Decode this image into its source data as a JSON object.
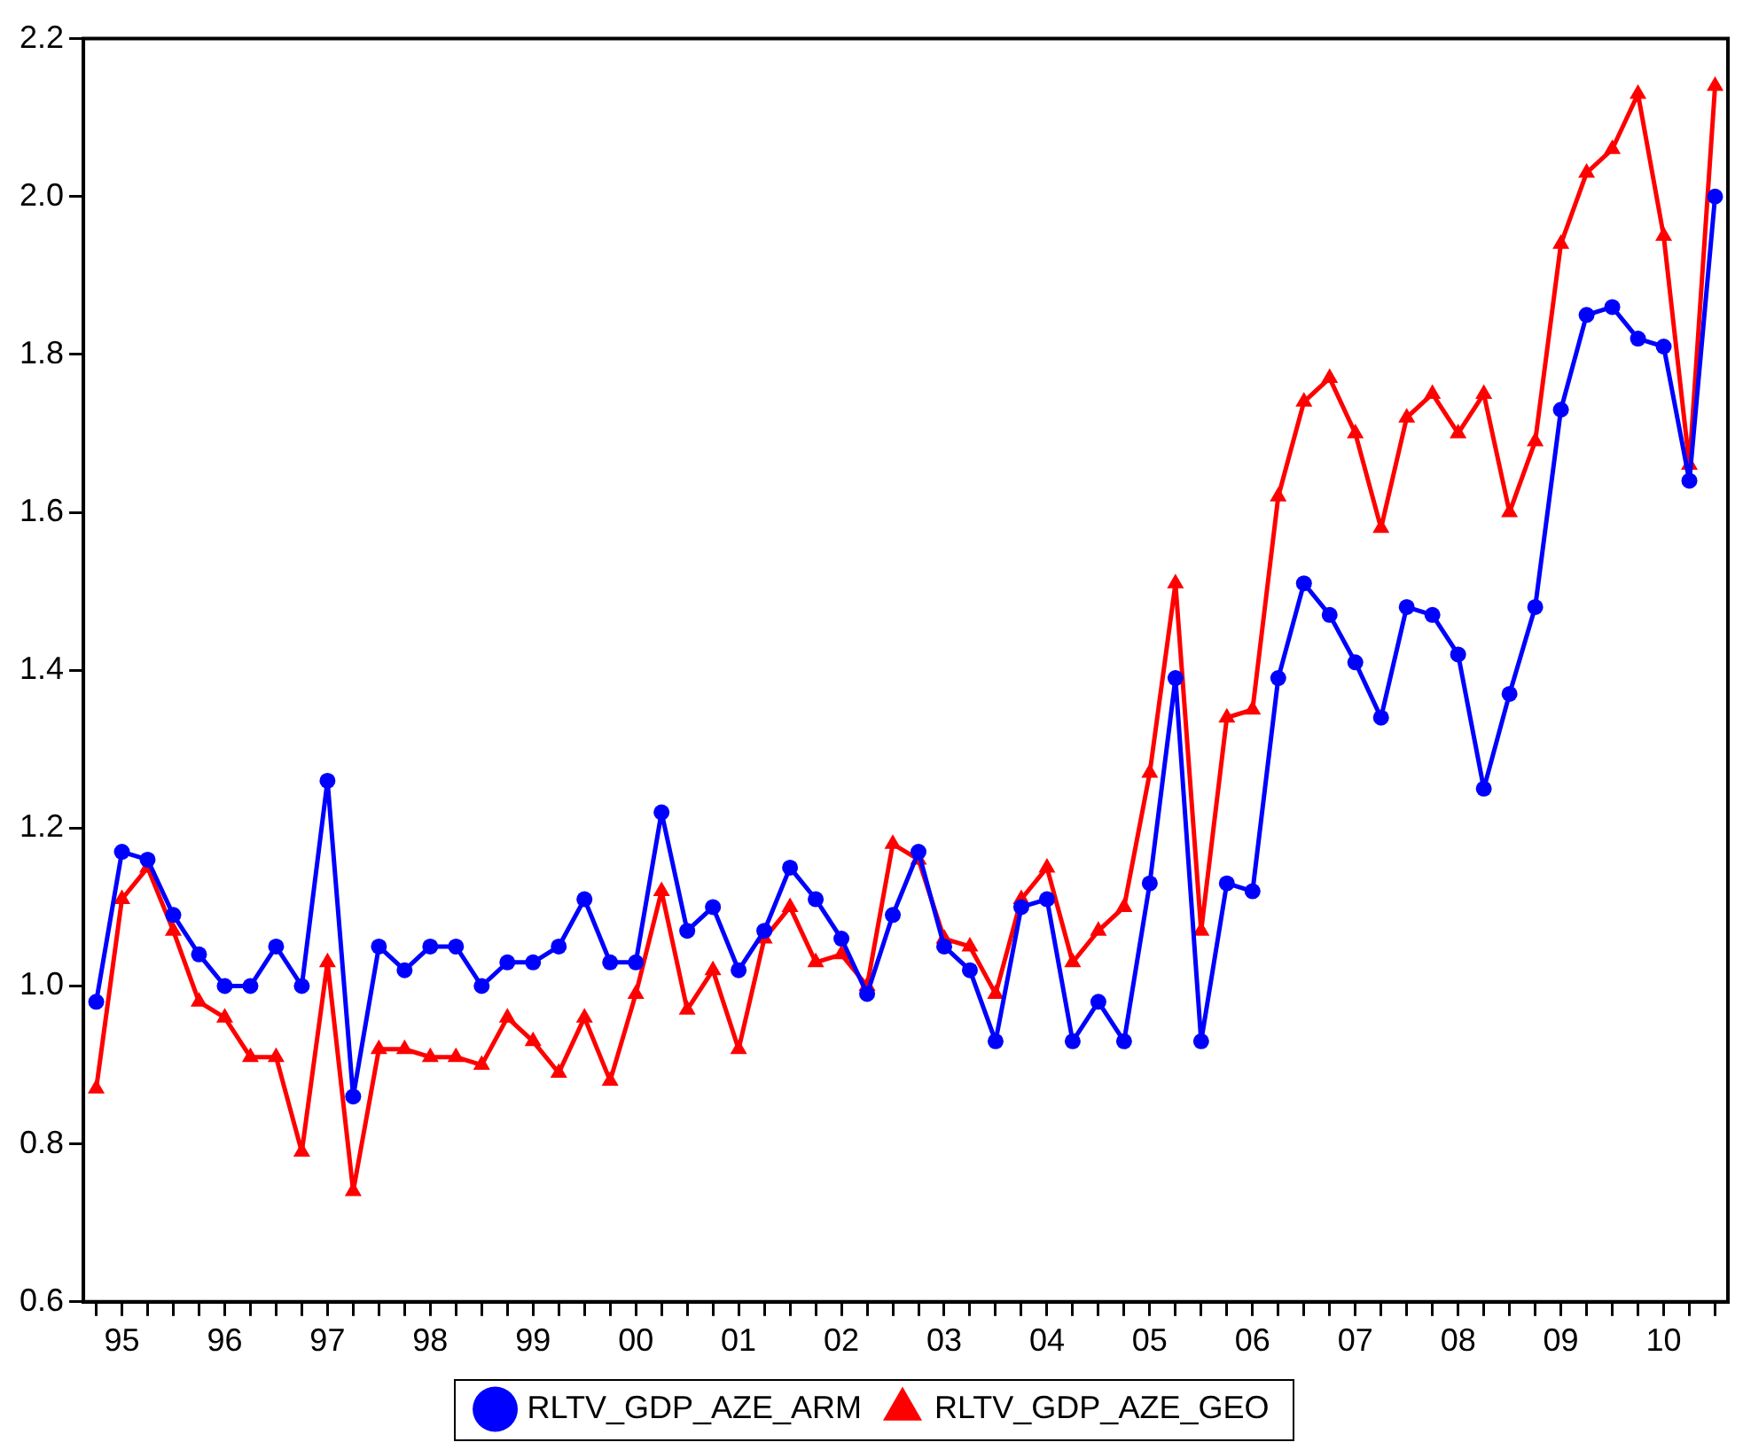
{
  "chart_data": {
    "type": "line",
    "categories": [
      null,
      "95",
      null,
      null,
      null,
      "96",
      null,
      null,
      null,
      "97",
      null,
      null,
      null,
      "98",
      null,
      null,
      null,
      "99",
      null,
      null,
      null,
      "00",
      null,
      null,
      null,
      "01",
      null,
      null,
      null,
      "02",
      null,
      null,
      null,
      "03",
      null,
      null,
      null,
      "04",
      null,
      null,
      null,
      "05",
      null,
      null,
      null,
      "06",
      null,
      null,
      null,
      "07",
      null,
      null,
      null,
      "08",
      null,
      null,
      null,
      "09",
      null,
      null,
      null,
      "10",
      null,
      null
    ],
    "series": [
      {
        "name": "RLTV_GDP_AZE_ARM",
        "color": "#0000ff",
        "marker": "circle",
        "values": [
          0.98,
          1.17,
          1.16,
          1.09,
          1.04,
          1.0,
          1.0,
          1.05,
          1.0,
          1.26,
          0.86,
          1.05,
          1.02,
          1.05,
          1.05,
          1.0,
          1.03,
          1.03,
          1.05,
          1.11,
          1.03,
          1.03,
          1.22,
          1.07,
          1.1,
          1.02,
          1.07,
          1.15,
          1.11,
          1.06,
          0.99,
          1.09,
          1.17,
          1.05,
          1.02,
          0.93,
          1.1,
          1.11,
          0.93,
          0.98,
          0.93,
          1.13,
          1.39,
          0.93,
          1.13,
          1.12,
          1.39,
          1.51,
          1.47,
          1.41,
          1.34,
          1.48,
          1.47,
          1.42,
          1.25,
          1.37,
          1.48,
          1.73,
          1.85,
          1.86,
          1.82,
          1.81,
          1.64,
          2.0
        ]
      },
      {
        "name": "RLTV_GDP_AZE_GEO",
        "color": "#ff0000",
        "marker": "triangle",
        "values": [
          0.87,
          1.11,
          1.15,
          1.07,
          0.98,
          0.96,
          0.91,
          0.91,
          0.79,
          1.03,
          0.74,
          0.92,
          0.92,
          0.91,
          0.91,
          0.9,
          0.96,
          0.93,
          0.89,
          0.96,
          0.88,
          0.99,
          1.12,
          0.97,
          1.02,
          0.92,
          1.06,
          1.1,
          1.03,
          1.04,
          1.0,
          1.18,
          1.16,
          1.06,
          1.05,
          0.99,
          1.11,
          1.15,
          1.03,
          1.07,
          1.1,
          1.27,
          1.51,
          1.07,
          1.34,
          1.35,
          1.62,
          1.74,
          1.77,
          1.7,
          1.58,
          1.72,
          1.75,
          1.7,
          1.75,
          1.6,
          1.69,
          1.94,
          2.03,
          2.06,
          2.13,
          1.95,
          1.66,
          2.14
        ]
      }
    ],
    "ylim": [
      0.6,
      2.2
    ],
    "yticks": [
      {
        "value": 0.6,
        "label": "0.6"
      },
      {
        "value": 0.8,
        "label": "0.8"
      },
      {
        "value": 1,
        "label": "1.0"
      },
      {
        "value": 1.2,
        "label": "1.2"
      },
      {
        "value": 1.4,
        "label": "1.4"
      },
      {
        "value": 1.6,
        "label": "1.6"
      },
      {
        "value": 1.8,
        "label": "1.8"
      },
      {
        "value": 2,
        "label": "2.0"
      },
      {
        "value": 2.2,
        "label": "2.2"
      }
    ],
    "grid": false,
    "legend": "bottom",
    "line_style": "solid"
  }
}
